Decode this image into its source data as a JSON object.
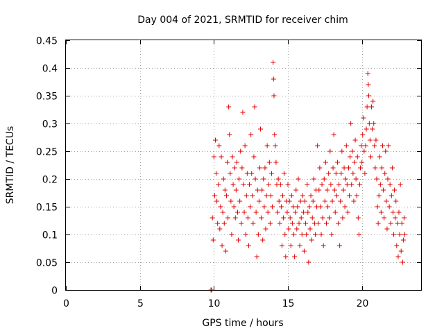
{
  "chart_data": {
    "type": "scatter",
    "title": "Day 004 of 2021, SRMTID for receiver chim",
    "xlabel": "GPS time / hours",
    "ylabel": "SRMTID / TECUs",
    "xlim": [
      0,
      24
    ],
    "ylim": [
      0,
      0.45
    ],
    "xticks": [
      0,
      5,
      10,
      15,
      20
    ],
    "xtick_labels": [
      "0",
      "5",
      "10",
      "15",
      "20"
    ],
    "yticks": [
      0,
      0.05,
      0.1,
      0.15,
      0.2,
      0.25,
      0.3,
      0.35,
      0.4,
      0.45
    ],
    "ytick_labels": [
      "0",
      "0.05",
      "0.1",
      "0.15",
      "0.2",
      "0.25",
      "0.3",
      "0.35",
      "0.4",
      "0.45"
    ],
    "grid": true,
    "marker": "+",
    "series": [
      {
        "name": "SRMTID",
        "color": "#e00000",
        "marker": "+",
        "points": [
          [
            9.8,
            0.0
          ],
          [
            9.85,
            0.0
          ],
          [
            9.9,
            0.13
          ],
          [
            9.95,
            0.09
          ],
          [
            10.0,
            0.24
          ],
          [
            10.05,
            0.17
          ],
          [
            10.1,
            0.27
          ],
          [
            10.15,
            0.21
          ],
          [
            10.2,
            0.16
          ],
          [
            10.25,
            0.12
          ],
          [
            10.3,
            0.19
          ],
          [
            10.35,
            0.26
          ],
          [
            10.4,
            0.11
          ],
          [
            10.45,
            0.15
          ],
          [
            10.5,
            0.24
          ],
          [
            10.55,
            0.08
          ],
          [
            10.6,
            0.14
          ],
          [
            10.65,
            0.2
          ],
          [
            10.7,
            0.12
          ],
          [
            10.75,
            0.18
          ],
          [
            10.8,
            0.07
          ],
          [
            10.85,
            0.17
          ],
          [
            10.9,
            0.23
          ],
          [
            10.95,
            0.13
          ],
          [
            11.0,
            0.33
          ],
          [
            11.05,
            0.28
          ],
          [
            11.1,
            0.21
          ],
          [
            11.15,
            0.16
          ],
          [
            11.2,
            0.1
          ],
          [
            11.25,
            0.24
          ],
          [
            11.3,
            0.19
          ],
          [
            11.35,
            0.15
          ],
          [
            11.4,
            0.22
          ],
          [
            11.45,
            0.13
          ],
          [
            11.5,
            0.18
          ],
          [
            11.55,
            0.23
          ],
          [
            11.6,
            0.14
          ],
          [
            11.65,
            0.09
          ],
          [
            11.7,
            0.2
          ],
          [
            11.75,
            0.16
          ],
          [
            11.8,
            0.25
          ],
          [
            11.85,
            0.12
          ],
          [
            11.9,
            0.22
          ],
          [
            11.95,
            0.32
          ],
          [
            12.0,
            0.19
          ],
          [
            12.05,
            0.14
          ],
          [
            12.1,
            0.26
          ],
          [
            12.15,
            0.1
          ],
          [
            12.2,
            0.17
          ],
          [
            12.25,
            0.21
          ],
          [
            12.3,
            0.13
          ],
          [
            12.35,
            0.08
          ],
          [
            12.4,
            0.19
          ],
          [
            12.45,
            0.15
          ],
          [
            12.5,
            0.28
          ],
          [
            12.55,
            0.21
          ],
          [
            12.6,
            0.17
          ],
          [
            12.65,
            0.12
          ],
          [
            12.7,
            0.24
          ],
          [
            12.75,
            0.33
          ],
          [
            12.8,
            0.2
          ],
          [
            12.85,
            0.14
          ],
          [
            12.9,
            0.06
          ],
          [
            12.95,
            0.18
          ],
          [
            13.0,
            0.1
          ],
          [
            13.05,
            0.16
          ],
          [
            13.1,
            0.22
          ],
          [
            13.15,
            0.29
          ],
          [
            13.2,
            0.13
          ],
          [
            13.25,
            0.18
          ],
          [
            13.3,
            0.09
          ],
          [
            13.35,
            0.2
          ],
          [
            13.4,
            0.15
          ],
          [
            13.45,
            0.22
          ],
          [
            13.5,
            0.11
          ],
          [
            13.55,
            0.17
          ],
          [
            13.6,
            0.26
          ],
          [
            13.65,
            0.14
          ],
          [
            13.7,
            0.19
          ],
          [
            13.75,
            0.23
          ],
          [
            13.8,
            0.12
          ],
          [
            13.85,
            0.17
          ],
          [
            13.9,
            0.21
          ],
          [
            13.95,
            0.15
          ],
          [
            14.0,
            0.41
          ],
          [
            14.03,
            0.38
          ],
          [
            14.06,
            0.35
          ],
          [
            14.1,
            0.28
          ],
          [
            14.15,
            0.26
          ],
          [
            14.2,
            0.23
          ],
          [
            14.25,
            0.19
          ],
          [
            14.3,
            0.14
          ],
          [
            14.35,
            0.2
          ],
          [
            14.4,
            0.16
          ],
          [
            14.45,
            0.12
          ],
          [
            14.5,
            0.19
          ],
          [
            14.55,
            0.15
          ],
          [
            14.6,
            0.08
          ],
          [
            14.65,
            0.17
          ],
          [
            14.7,
            0.13
          ],
          [
            14.75,
            0.21
          ],
          [
            14.8,
            0.1
          ],
          [
            14.85,
            0.06
          ],
          [
            14.9,
            0.16
          ],
          [
            14.95,
            0.14
          ],
          [
            15.0,
            0.19
          ],
          [
            15.05,
            0.11
          ],
          [
            15.1,
            0.16
          ],
          [
            15.15,
            0.13
          ],
          [
            15.2,
            0.08
          ],
          [
            15.25,
            0.17
          ],
          [
            15.3,
            0.12
          ],
          [
            15.35,
            0.15
          ],
          [
            15.4,
            0.1
          ],
          [
            15.45,
            0.06
          ],
          [
            15.5,
            0.14
          ],
          [
            15.55,
            0.18
          ],
          [
            15.6,
            0.11
          ],
          [
            15.65,
            0.15
          ],
          [
            15.7,
            0.2
          ],
          [
            15.75,
            0.12
          ],
          [
            15.8,
            0.08
          ],
          [
            15.85,
            0.16
          ],
          [
            15.9,
            0.13
          ],
          [
            15.95,
            0.1
          ],
          [
            16.0,
            0.17
          ],
          [
            16.05,
            0.14
          ],
          [
            16.1,
            0.07
          ],
          [
            16.15,
            0.16
          ],
          [
            16.2,
            0.12
          ],
          [
            16.25,
            0.1
          ],
          [
            16.3,
            0.19
          ],
          [
            16.35,
            0.14
          ],
          [
            16.4,
            0.05
          ],
          [
            16.45,
            0.15
          ],
          [
            16.5,
            0.11
          ],
          [
            16.55,
            0.17
          ],
          [
            16.6,
            0.09
          ],
          [
            16.65,
            0.13
          ],
          [
            16.7,
            0.16
          ],
          [
            16.75,
            0.2
          ],
          [
            16.8,
            0.12
          ],
          [
            16.85,
            0.1
          ],
          [
            16.9,
            0.18
          ],
          [
            16.95,
            0.15
          ],
          [
            17.0,
            0.26
          ],
          [
            17.05,
            0.12
          ],
          [
            17.1,
            0.18
          ],
          [
            17.15,
            0.22
          ],
          [
            17.2,
            0.15
          ],
          [
            17.25,
            0.1
          ],
          [
            17.3,
            0.19
          ],
          [
            17.35,
            0.13
          ],
          [
            17.4,
            0.08
          ],
          [
            17.45,
            0.2
          ],
          [
            17.5,
            0.16
          ],
          [
            17.55,
            0.23
          ],
          [
            17.6,
            0.12
          ],
          [
            17.65,
            0.18
          ],
          [
            17.7,
            0.15
          ],
          [
            17.75,
            0.21
          ],
          [
            17.8,
            0.13
          ],
          [
            17.85,
            0.25
          ],
          [
            17.9,
            0.19
          ],
          [
            17.95,
            0.1
          ],
          [
            18.0,
            0.16
          ],
          [
            18.05,
            0.22
          ],
          [
            18.1,
            0.28
          ],
          [
            18.15,
            0.18
          ],
          [
            18.2,
            0.14
          ],
          [
            18.25,
            0.21
          ],
          [
            18.3,
            0.17
          ],
          [
            18.35,
            0.23
          ],
          [
            18.4,
            0.12
          ],
          [
            18.45,
            0.19
          ],
          [
            18.5,
            0.08
          ],
          [
            18.55,
            0.16
          ],
          [
            18.6,
            0.21
          ],
          [
            18.65,
            0.25
          ],
          [
            18.7,
            0.13
          ],
          [
            18.75,
            0.18
          ],
          [
            18.8,
            0.22
          ],
          [
            18.85,
            0.15
          ],
          [
            18.9,
            0.2
          ],
          [
            18.95,
            0.26
          ],
          [
            19.0,
            0.19
          ],
          [
            19.05,
            0.14
          ],
          [
            19.1,
            0.22
          ],
          [
            19.15,
            0.17
          ],
          [
            19.2,
            0.24
          ],
          [
            19.25,
            0.3
          ],
          [
            19.3,
            0.19
          ],
          [
            19.35,
            0.25
          ],
          [
            19.4,
            0.21
          ],
          [
            19.45,
            0.16
          ],
          [
            19.5,
            0.23
          ],
          [
            19.55,
            0.27
          ],
          [
            19.6,
            0.2
          ],
          [
            19.65,
            0.17
          ],
          [
            19.7,
            0.24
          ],
          [
            19.75,
            0.13
          ],
          [
            19.8,
            0.1
          ],
          [
            19.85,
            0.19
          ],
          [
            19.9,
            0.22
          ],
          [
            19.95,
            0.26
          ],
          [
            20.0,
            0.23
          ],
          [
            20.05,
            0.28
          ],
          [
            20.1,
            0.31
          ],
          [
            20.15,
            0.25
          ],
          [
            20.2,
            0.21
          ],
          [
            20.25,
            0.26
          ],
          [
            20.3,
            0.29
          ],
          [
            20.35,
            0.33
          ],
          [
            20.4,
            0.39
          ],
          [
            20.43,
            0.37
          ],
          [
            20.46,
            0.35
          ],
          [
            20.5,
            0.3
          ],
          [
            20.55,
            0.27
          ],
          [
            20.6,
            0.24
          ],
          [
            20.65,
            0.33
          ],
          [
            20.7,
            0.29
          ],
          [
            20.75,
            0.34
          ],
          [
            20.8,
            0.3
          ],
          [
            20.85,
            0.26
          ],
          [
            20.9,
            0.22
          ],
          [
            20.95,
            0.27
          ],
          [
            21.0,
            0.2
          ],
          [
            21.05,
            0.15
          ],
          [
            21.1,
            0.12
          ],
          [
            21.15,
            0.17
          ],
          [
            21.2,
            0.24
          ],
          [
            21.25,
            0.19
          ],
          [
            21.3,
            0.14
          ],
          [
            21.35,
            0.22
          ],
          [
            21.4,
            0.26
          ],
          [
            21.45,
            0.18
          ],
          [
            21.5,
            0.13
          ],
          [
            21.55,
            0.21
          ],
          [
            21.6,
            0.25
          ],
          [
            21.65,
            0.16
          ],
          [
            21.7,
            0.11
          ],
          [
            21.75,
            0.2
          ],
          [
            21.8,
            0.26
          ],
          [
            21.85,
            0.15
          ],
          [
            21.9,
            0.19
          ],
          [
            21.95,
            0.12
          ],
          [
            22.0,
            0.17
          ],
          [
            22.05,
            0.22
          ],
          [
            22.1,
            0.14
          ],
          [
            22.15,
            0.1
          ],
          [
            22.2,
            0.18
          ],
          [
            22.25,
            0.13
          ],
          [
            22.3,
            0.16
          ],
          [
            22.35,
            0.08
          ],
          [
            22.4,
            0.12
          ],
          [
            22.45,
            0.06
          ],
          [
            22.5,
            0.14
          ],
          [
            22.55,
            0.1
          ],
          [
            22.6,
            0.19
          ],
          [
            22.65,
            0.07
          ],
          [
            22.7,
            0.12
          ],
          [
            22.75,
            0.05
          ],
          [
            22.8,
            0.09
          ],
          [
            22.85,
            0.13
          ],
          [
            22.9,
            0.1
          ]
        ]
      }
    ]
  }
}
